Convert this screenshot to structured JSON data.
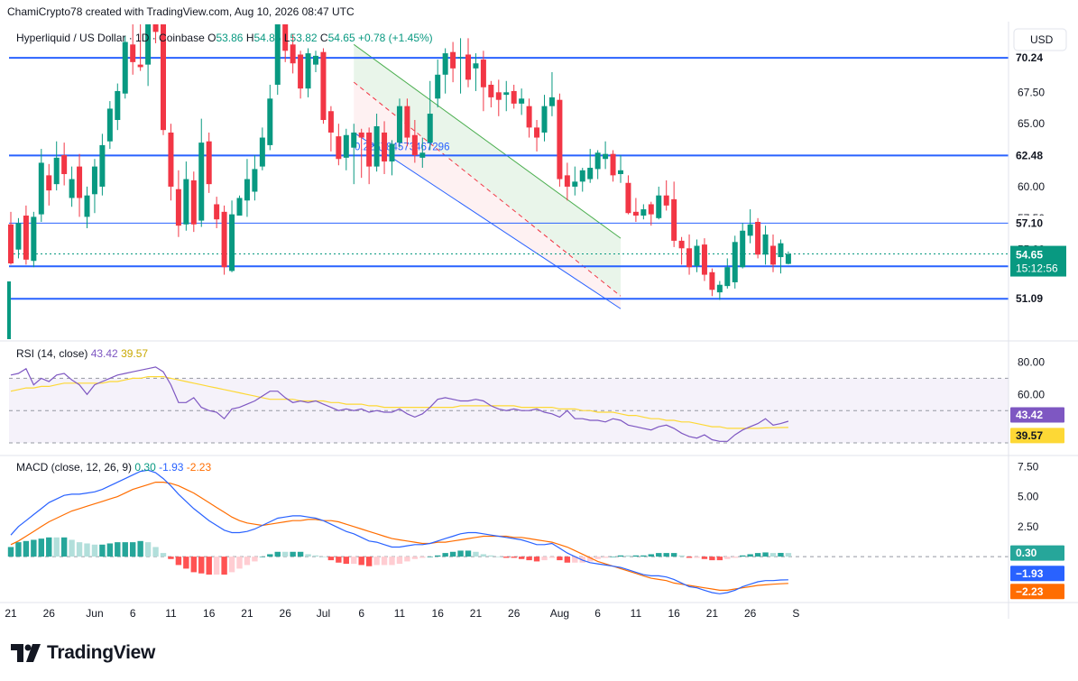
{
  "header": {
    "credit": "ChamiCrypto78 created with TradingView.com, Aug 10, 2026 08:47 UTC"
  },
  "legend": {
    "symbol": "Hyperliquid / US Dollar",
    "interval": "1D",
    "exchange": "Coinbase",
    "open_label": "O",
    "open": "53.86",
    "high_label": "H",
    "high": "54.85",
    "low_label": "L",
    "low": "53.82",
    "close_label": "C",
    "close": "54.65",
    "change": "+0.78 (+1.45%)"
  },
  "currency_button": "USD",
  "colors": {
    "up": "#089981",
    "down": "#f23645",
    "level": "#2962ff",
    "rsi": "#7e57c2",
    "rsi_ma": "#fdd835",
    "macd": "#2962ff",
    "signal": "#ff6d00",
    "channel_top": "#4caf50",
    "channel_bottom": "#2962ff",
    "channel_mid": "#f23645"
  },
  "footer": {
    "logo_text": "TradingView"
  },
  "chart_data": {
    "type": "candlestick",
    "x_labels": [
      "21",
      "26",
      "Jun",
      "6",
      "11",
      "16",
      "21",
      "26",
      "Jul",
      "6",
      "11",
      "16",
      "21",
      "26",
      "Aug",
      "6",
      "11",
      "16",
      "21",
      "26",
      "S"
    ],
    "x_label_days": [
      0,
      5,
      11,
      16,
      21,
      26,
      31,
      36,
      41,
      46,
      51,
      56,
      61,
      66,
      72,
      77,
      82,
      87,
      92,
      97,
      103
    ],
    "price_axis": {
      "ylim": [
        49.6,
        72.9
      ],
      "ticks": [
        "67.50",
        "65.00",
        "60.00"
      ],
      "ticks_values": [
        67.5,
        65.0,
        60.0
      ],
      "partial_ticks": [
        "57.50",
        "55.00"
      ],
      "partial_ticks_values": [
        57.5,
        55.0
      ]
    },
    "price_badges": [
      {
        "label": "70.24",
        "value": 70.24,
        "kind": "level"
      },
      {
        "label": "62.48",
        "value": 62.48,
        "kind": "level"
      },
      {
        "label": "57.10",
        "value": 57.1,
        "kind": "level"
      },
      {
        "label": "53.67",
        "value": 53.67,
        "kind": "level"
      },
      {
        "label": "51.09",
        "value": 51.09,
        "kind": "level"
      },
      {
        "label": "54.65",
        "value": 54.65,
        "kind": "last",
        "sub": "15:12:56"
      }
    ],
    "horizontal_levels": [
      70.24,
      62.48,
      57.1,
      53.67,
      51.09
    ],
    "annotation_text": "0.2257845734672​96",
    "channel": {
      "top": {
        "from": [
          45,
          71.3
        ],
        "to": [
          80,
          55.9
        ]
      },
      "bottom": {
        "from": [
          45,
          64.3
        ],
        "to": [
          80,
          50.3
        ]
      },
      "middle": {
        "from": [
          45,
          68.3
        ],
        "to": [
          80,
          51.3
        ]
      }
    },
    "candles": [
      [
        0,
        57.0,
        53.9,
        58.0,
        53.8
      ],
      [
        1,
        55.0,
        57.1,
        57.5,
        54.3
      ],
      [
        2,
        57.7,
        54.2,
        58.5,
        53.8
      ],
      [
        3,
        54.1,
        57.6,
        58.0,
        53.6
      ],
      [
        4,
        57.8,
        61.9,
        63.0,
        57.2
      ],
      [
        5,
        60.9,
        59.7,
        61.8,
        58.5
      ],
      [
        6,
        60.2,
        62.3,
        63.6,
        59.7
      ],
      [
        7,
        62.5,
        61.0,
        63.5,
        60.1
      ],
      [
        8,
        59.1,
        60.6,
        61.6,
        58.4
      ],
      [
        9,
        61.6,
        59.1,
        62.6,
        57.6
      ],
      [
        10,
        57.6,
        59.3,
        60.0,
        56.7
      ],
      [
        11,
        59.4,
        61.6,
        62.2,
        57.9
      ],
      [
        12,
        60.0,
        63.3,
        64.2,
        59.3
      ],
      [
        13,
        63.6,
        66.2,
        66.8,
        63.0
      ],
      [
        14,
        65.3,
        67.6,
        68.2,
        64.5
      ],
      [
        15,
        67.4,
        71.5,
        72.0,
        67.0
      ],
      [
        16,
        71.3,
        69.9,
        73.6,
        68.9
      ],
      [
        17,
        69.7,
        69.5,
        73.0,
        69.2
      ],
      [
        18,
        69.7,
        73.0,
        75.0,
        68.0
      ],
      [
        19,
        73.5,
        72.3,
        74.4,
        71.4
      ],
      [
        20,
        72.9,
        64.5,
        74.0,
        64.1
      ],
      [
        21,
        64.3,
        60.0,
        65.0,
        58.9
      ],
      [
        22,
        59.8,
        56.9,
        61.3,
        56.0
      ],
      [
        23,
        57.0,
        60.6,
        62.0,
        56.5
      ],
      [
        24,
        60.5,
        57.0,
        61.2,
        56.4
      ],
      [
        25,
        57.3,
        63.5,
        65.4,
        56.8
      ],
      [
        26,
        63.6,
        60.2,
        64.3,
        59.5
      ],
      [
        27,
        58.6,
        57.4,
        59.2,
        56.7
      ],
      [
        28,
        58.0,
        53.6,
        58.5,
        53.0
      ],
      [
        29,
        53.3,
        57.8,
        58.9,
        53.2
      ],
      [
        30,
        57.7,
        59.1,
        59.3,
        57.7
      ],
      [
        31,
        58.9,
        60.6,
        62.2,
        57.6
      ],
      [
        32,
        59.6,
        61.4,
        62.5,
        58.9
      ],
      [
        33,
        61.6,
        63.9,
        64.7,
        61.3
      ],
      [
        34,
        63.3,
        67.0,
        68.1,
        62.9
      ],
      [
        35,
        68.1,
        73.0,
        74.0,
        67.3
      ],
      [
        36,
        72.9,
        70.8,
        73.6,
        69.9
      ],
      [
        37,
        71.3,
        69.8,
        72.1,
        69.0
      ],
      [
        38,
        70.5,
        67.8,
        70.8,
        67.0
      ],
      [
        39,
        67.8,
        70.6,
        71.0,
        67.1
      ],
      [
        40,
        69.7,
        70.4,
        70.8,
        69.1
      ],
      [
        41,
        70.7,
        65.3,
        71.0,
        65.0
      ],
      [
        42,
        66.0,
        64.3,
        66.4,
        62.8
      ],
      [
        43,
        64.0,
        62.2,
        65.0,
        61.7
      ],
      [
        44,
        62.3,
        64.1,
        64.6,
        61.3
      ],
      [
        45,
        63.1,
        64.3,
        65.0,
        60.2
      ],
      [
        46,
        64.3,
        63.9,
        64.6,
        60.7
      ],
      [
        47,
        64.3,
        61.6,
        64.7,
        60.2
      ],
      [
        48,
        61.6,
        64.8,
        65.8,
        61.2
      ],
      [
        49,
        64.3,
        62.0,
        65.2,
        61.0
      ],
      [
        50,
        62.0,
        63.4,
        63.7,
        60.9
      ],
      [
        51,
        63.5,
        66.4,
        67.0,
        63.1
      ],
      [
        52,
        66.4,
        63.9,
        67.0,
        63.2
      ],
      [
        53,
        64.1,
        62.5,
        65.3,
        61.9
      ],
      [
        54,
        62.3,
        62.7,
        63.9,
        61.5
      ],
      [
        55,
        63.5,
        65.8,
        68.4,
        62.9
      ],
      [
        56,
        67.0,
        68.9,
        70.1,
        66.3
      ],
      [
        57,
        68.9,
        70.6,
        71.0,
        67.4
      ],
      [
        58,
        70.7,
        69.4,
        71.5,
        68.3
      ],
      [
        59,
        70.3,
        70.3,
        71.8,
        67.4
      ],
      [
        60,
        70.5,
        68.5,
        71.8,
        67.9
      ],
      [
        61,
        69.4,
        69.8,
        70.6,
        67.6
      ],
      [
        62,
        70.1,
        67.9,
        70.8,
        66.0
      ],
      [
        63,
        68.1,
        67.1,
        68.4,
        66.3
      ],
      [
        64,
        67.5,
        66.9,
        68.5,
        65.6
      ],
      [
        65,
        67.3,
        67.5,
        68.4,
        66.0
      ],
      [
        66,
        67.6,
        66.6,
        68.1,
        66.2
      ],
      [
        67,
        66.6,
        67.0,
        67.8,
        65.7
      ],
      [
        68,
        66.4,
        64.7,
        67.0,
        63.9
      ],
      [
        69,
        64.7,
        63.9,
        65.3,
        62.8
      ],
      [
        70,
        64.3,
        66.4,
        67.3,
        63.6
      ],
      [
        71,
        66.4,
        67.1,
        69.1,
        65.6
      ],
      [
        72,
        66.9,
        60.6,
        67.4,
        60.0
      ],
      [
        73,
        60.9,
        60.0,
        61.9,
        58.9
      ],
      [
        74,
        60.0,
        60.4,
        61.6,
        59.3
      ],
      [
        75,
        60.4,
        61.3,
        61.5,
        59.6
      ],
      [
        76,
        60.6,
        61.5,
        63.0,
        60.3
      ],
      [
        77,
        61.4,
        62.7,
        62.9,
        60.6
      ],
      [
        78,
        62.2,
        62.6,
        63.6,
        61.4
      ],
      [
        79,
        62.6,
        60.9,
        62.9,
        60.4
      ],
      [
        80,
        61.0,
        61.3,
        62.5,
        60.3
      ],
      [
        81,
        60.3,
        57.9,
        60.9,
        57.8
      ],
      [
        82,
        58.0,
        57.7,
        59.1,
        57.2
      ],
      [
        83,
        57.7,
        58.2,
        58.6,
        57.4
      ],
      [
        84,
        58.6,
        57.8,
        58.8,
        56.9
      ],
      [
        85,
        57.5,
        59.3,
        60.0,
        57.4
      ],
      [
        86,
        59.3,
        58.5,
        60.5,
        58.1
      ],
      [
        87,
        59.0,
        55.7,
        60.4,
        55.2
      ],
      [
        88,
        55.7,
        55.1,
        56.0,
        53.8
      ],
      [
        89,
        55.1,
        53.6,
        56.2,
        53.0
      ],
      [
        90,
        53.7,
        55.3,
        55.8,
        53.2
      ],
      [
        91,
        55.4,
        53.0,
        55.9,
        52.5
      ],
      [
        92,
        53.2,
        51.8,
        53.5,
        51.3
      ],
      [
        93,
        51.6,
        52.2,
        52.5,
        51.0
      ],
      [
        94,
        52.1,
        53.6,
        54.3,
        51.9
      ],
      [
        95,
        52.4,
        55.6,
        56.1,
        51.9
      ],
      [
        96,
        53.6,
        56.5,
        57.1,
        53.5
      ],
      [
        97,
        56.1,
        57.0,
        58.2,
        55.5
      ],
      [
        98,
        57.2,
        54.6,
        57.5,
        54.3
      ],
      [
        99,
        54.6,
        56.2,
        56.9,
        53.8
      ],
      [
        100,
        55.3,
        53.8,
        56.2,
        53.2
      ],
      [
        101,
        54.4,
        55.5,
        55.8,
        53.1
      ],
      [
        102,
        53.86,
        54.65,
        54.85,
        53.82
      ]
    ],
    "rsi": {
      "title": "RSI",
      "params": "(14, close)",
      "value": "43.42",
      "ma_value": "39.57",
      "ylim": [
        25,
        92
      ],
      "ticks": [
        "80.00",
        "60.00"
      ],
      "ticks_values": [
        80,
        60
      ],
      "band": [
        70,
        30
      ],
      "midline": 50,
      "badges": [
        {
          "label": "43.42",
          "value": 43.42,
          "kind": "rsi"
        },
        {
          "label": "39.57",
          "value": 39.57,
          "kind": "rsi_ma"
        }
      ],
      "values": [
        72,
        73,
        76,
        66,
        70,
        68,
        72,
        73,
        69,
        66,
        60,
        66,
        68,
        70,
        72,
        73,
        74,
        75,
        76,
        77,
        74,
        66,
        55,
        55,
        58,
        52,
        50,
        49,
        45,
        51,
        52,
        54,
        56,
        59,
        62,
        62,
        58,
        55,
        56,
        55,
        56,
        54,
        52,
        50,
        51,
        50,
        51,
        49,
        50,
        49,
        49,
        51,
        48,
        46,
        48,
        52,
        57,
        58,
        57,
        56,
        56,
        57,
        56,
        53,
        51,
        50,
        51,
        50,
        50,
        51,
        49,
        48,
        46,
        50,
        45,
        45,
        44,
        44,
        43,
        45,
        44,
        41,
        40,
        39,
        38,
        40,
        41,
        39,
        36,
        34,
        33,
        35,
        32,
        31,
        31,
        35,
        38,
        40,
        42,
        45,
        41,
        42,
        43.42
      ],
      "ma_values": [
        62,
        63,
        64,
        64,
        65,
        65,
        66,
        67,
        67,
        67,
        67,
        67,
        67,
        68,
        68,
        69,
        70,
        70,
        71,
        71,
        71,
        70,
        69,
        68,
        67,
        66,
        65,
        64,
        63,
        62,
        61,
        60,
        59,
        58,
        57,
        57,
        57,
        57,
        56,
        56,
        56,
        56,
        55,
        55,
        54,
        54,
        54,
        53,
        53,
        52,
        52,
        52,
        52,
        52,
        52,
        52,
        52,
        52,
        52,
        53,
        53,
        53,
        53,
        53,
        53,
        53,
        53,
        52,
        52,
        52,
        52,
        52,
        51,
        51,
        51,
        50,
        50,
        49,
        49,
        49,
        48,
        47,
        47,
        46,
        45,
        45,
        44,
        44,
        43,
        43,
        42,
        41,
        40,
        40,
        39,
        39,
        39,
        39,
        39,
        39.3,
        39.4,
        39.5,
        39.57
      ]
    },
    "macd": {
      "title": "MACD",
      "params": "(close, 12, 26, 9)",
      "value": "0.30",
      "macd_value": "-1.93",
      "signal_value": "-2.23",
      "ylim": [
        -3.6,
        8.2
      ],
      "ticks": [
        "7.50",
        "5.00",
        "2.50"
      ],
      "ticks_values": [
        7.5,
        5.0,
        2.5
      ],
      "zero_line": 0,
      "badges": [
        {
          "label": "0.30",
          "value": 0.3,
          "kind": "hist"
        },
        {
          "label": "−1.93",
          "value": -1.93,
          "kind": "macd"
        },
        {
          "label": "−2.23",
          "value": -2.23,
          "kind": "signal"
        }
      ],
      "macd_values": [
        1.8,
        2.5,
        3.0,
        3.5,
        4.0,
        4.5,
        4.8,
        5.1,
        5.2,
        5.2,
        5.3,
        5.4,
        5.6,
        5.9,
        6.2,
        6.5,
        6.8,
        7.1,
        7.2,
        7.0,
        6.5,
        5.9,
        5.2,
        4.6,
        4.0,
        3.5,
        3.0,
        2.6,
        2.2,
        2.0,
        2.0,
        2.1,
        2.3,
        2.6,
        2.9,
        3.2,
        3.3,
        3.4,
        3.4,
        3.3,
        3.2,
        3.0,
        2.7,
        2.4,
        2.1,
        1.9,
        1.6,
        1.3,
        1.2,
        1.0,
        0.8,
        0.8,
        0.9,
        1.0,
        1.0,
        1.1,
        1.3,
        1.5,
        1.7,
        1.9,
        2.0,
        2.0,
        1.9,
        1.8,
        1.7,
        1.6,
        1.5,
        1.4,
        1.2,
        1.0,
        1.0,
        1.1,
        0.7,
        0.3,
        0.0,
        -0.3,
        -0.5,
        -0.6,
        -0.7,
        -0.8,
        -0.9,
        -1.1,
        -1.3,
        -1.5,
        -1.6,
        -1.6,
        -1.7,
        -1.9,
        -2.2,
        -2.5,
        -2.6,
        -2.8,
        -3.0,
        -3.1,
        -3.0,
        -2.8,
        -2.5,
        -2.3,
        -2.1,
        -2.0,
        -2.0,
        -1.95,
        -1.93
      ],
      "signal_values": [
        1.0,
        1.3,
        1.7,
        2.1,
        2.5,
        2.9,
        3.2,
        3.5,
        3.8,
        4.0,
        4.2,
        4.4,
        4.6,
        4.8,
        5.0,
        5.3,
        5.6,
        5.8,
        6.0,
        6.2,
        6.2,
        6.1,
        5.9,
        5.6,
        5.3,
        4.9,
        4.5,
        4.1,
        3.7,
        3.3,
        3.0,
        2.8,
        2.7,
        2.6,
        2.7,
        2.8,
        2.9,
        3.0,
        3.0,
        3.1,
        3.1,
        3.0,
        3.0,
        2.9,
        2.7,
        2.5,
        2.3,
        2.1,
        1.9,
        1.7,
        1.5,
        1.4,
        1.3,
        1.2,
        1.1,
        1.1,
        1.2,
        1.2,
        1.3,
        1.4,
        1.5,
        1.6,
        1.7,
        1.7,
        1.7,
        1.7,
        1.6,
        1.6,
        1.5,
        1.4,
        1.3,
        1.2,
        1.0,
        0.8,
        0.5,
        0.2,
        -0.1,
        -0.4,
        -0.6,
        -0.8,
        -1.0,
        -1.2,
        -1.4,
        -1.6,
        -1.8,
        -1.9,
        -2.0,
        -2.2,
        -2.3,
        -2.4,
        -2.5,
        -2.6,
        -2.7,
        -2.8,
        -2.8,
        -2.7,
        -2.6,
        -2.5,
        -2.4,
        -2.35,
        -2.3,
        -2.26,
        -2.23
      ]
    }
  }
}
